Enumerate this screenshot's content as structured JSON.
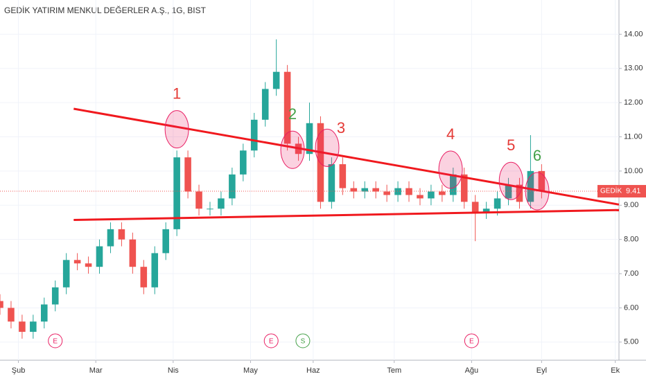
{
  "chart_data": {
    "type": "candlestick",
    "title": "GEDİK YATIRIM MENKUL DEĞERLER A.Ş., 1G, BIST",
    "x": [
      0,
      3,
      6,
      9,
      12,
      15,
      18,
      21,
      24,
      27,
      30,
      33,
      36,
      39,
      42,
      45,
      48,
      51,
      54,
      57,
      60,
      63,
      66,
      69,
      72,
      75,
      78,
      81,
      84,
      87,
      90,
      93,
      96,
      99,
      102,
      105,
      108,
      111,
      114,
      117,
      120,
      123,
      126,
      129,
      132,
      135,
      138,
      141,
      144,
      147
    ],
    "open": [
      6.2,
      6.0,
      5.6,
      5.3,
      5.6,
      6.1,
      6.6,
      7.4,
      7.3,
      7.2,
      7.8,
      8.3,
      8.0,
      7.2,
      6.6,
      7.6,
      8.3,
      10.4,
      9.4,
      8.9,
      8.9,
      9.2,
      9.9,
      10.6,
      11.5,
      12.4,
      12.9,
      10.8,
      10.5,
      11.4,
      9.1,
      10.2,
      9.5,
      9.4,
      9.5,
      9.4,
      9.3,
      9.5,
      9.3,
      9.2,
      9.4,
      9.3,
      9.9,
      9.1,
      8.8,
      8.9,
      9.2,
      9.6,
      9.1,
      10.0
    ],
    "high": [
      6.4,
      6.2,
      5.8,
      5.8,
      6.3,
      6.8,
      7.6,
      7.6,
      7.5,
      8.0,
      8.5,
      8.5,
      8.2,
      7.4,
      7.8,
      8.5,
      10.6,
      10.6,
      9.6,
      9.1,
      9.4,
      10.1,
      10.8,
      11.7,
      12.6,
      13.85,
      13.1,
      11.0,
      12.0,
      11.6,
      10.4,
      10.4,
      9.7,
      9.7,
      9.7,
      9.6,
      9.7,
      9.7,
      9.5,
      9.6,
      9.6,
      10.1,
      10.1,
      9.3,
      9.1,
      9.4,
      9.8,
      9.8,
      11.05,
      10.2
    ],
    "low": [
      5.8,
      5.4,
      5.1,
      5.1,
      5.4,
      5.9,
      6.4,
      7.1,
      7.0,
      7.0,
      7.6,
      7.8,
      7.0,
      6.4,
      6.4,
      7.4,
      8.1,
      9.2,
      8.7,
      8.7,
      8.7,
      9.0,
      9.7,
      10.4,
      11.3,
      12.2,
      10.6,
      10.3,
      10.3,
      8.9,
      8.9,
      9.3,
      9.2,
      9.2,
      9.2,
      9.1,
      9.1,
      9.1,
      9.0,
      9.0,
      9.1,
      9.1,
      8.9,
      7.95,
      8.6,
      8.7,
      9.0,
      8.9,
      8.9,
      9.2
    ],
    "close": [
      6.0,
      5.6,
      5.3,
      5.6,
      6.1,
      6.6,
      7.4,
      7.3,
      7.2,
      7.8,
      8.3,
      8.0,
      7.2,
      6.6,
      7.6,
      8.3,
      10.4,
      9.4,
      8.9,
      8.9,
      9.2,
      9.9,
      10.6,
      11.5,
      12.4,
      12.9,
      10.8,
      10.5,
      11.4,
      9.1,
      10.2,
      9.5,
      9.4,
      9.5,
      9.4,
      9.3,
      9.5,
      9.3,
      9.2,
      9.4,
      9.3,
      9.9,
      9.1,
      8.8,
      8.9,
      9.2,
      9.6,
      9.1,
      10.0,
      9.41
    ],
    "up_color": "#26a69a",
    "down_color": "#ef5350",
    "xlim": [
      0,
      168
    ],
    "xticks": [
      {
        "value": 5,
        "label": "Şub"
      },
      {
        "value": 26,
        "label": "Mar"
      },
      {
        "value": 47,
        "label": "Nis"
      },
      {
        "value": 68,
        "label": "May"
      },
      {
        "value": 85,
        "label": "Haz"
      },
      {
        "value": 107,
        "label": "Tem"
      },
      {
        "value": 128,
        "label": "Ağu"
      },
      {
        "value": 147,
        "label": "Eyl"
      },
      {
        "value": 167,
        "label": "Ek"
      }
    ],
    "ylim": [
      4.47,
      15.0
    ],
    "yticks": [
      {
        "value": 5,
        "label": "5.00"
      },
      {
        "value": 6,
        "label": "6.00"
      },
      {
        "value": 7,
        "label": "7.00"
      },
      {
        "value": 8,
        "label": "8.00"
      },
      {
        "value": 9,
        "label": "9.00"
      },
      {
        "value": 10,
        "label": "10.00"
      },
      {
        "value": 11,
        "label": "11.00"
      },
      {
        "value": 12,
        "label": "12.00"
      },
      {
        "value": 13,
        "label": "13.00"
      },
      {
        "value": 14,
        "label": "14.00"
      }
    ],
    "grid": true,
    "trendlines": [
      {
        "color": "#f0191e",
        "x": [
          20,
          168
        ],
        "y": [
          11.82,
          9.02
        ]
      },
      {
        "color": "#f0191e",
        "x": [
          20,
          168
        ],
        "y": [
          8.57,
          8.86
        ]
      }
    ],
    "annotations": [
      {
        "label": "1",
        "color": "#e53935",
        "x": 48,
        "y": 11.22
      },
      {
        "label": "2",
        "color": "#43a047",
        "x": 79.4,
        "y": 10.62
      },
      {
        "label": "3",
        "color": "#e53935",
        "x": 88.8,
        "y": 10.68
      },
      {
        "label": "4",
        "color": "#e53935",
        "x": 122.3,
        "y": 10.04
      },
      {
        "label": "5",
        "color": "#e53935",
        "x": 138.7,
        "y": 9.71
      },
      {
        "label": "6",
        "color": "#43a047",
        "x": 145.8,
        "y": 9.41
      }
    ],
    "events": [
      {
        "label": "E",
        "color": "#e91e63",
        "x": 15
      },
      {
        "label": "E",
        "color": "#e91e63",
        "x": 73.6
      },
      {
        "label": "S",
        "color": "#43a047",
        "x": 82.2
      },
      {
        "label": "E",
        "color": "#e91e63",
        "x": 128
      }
    ],
    "symbol_label": "GEDİK",
    "last_price": 9.41
  }
}
